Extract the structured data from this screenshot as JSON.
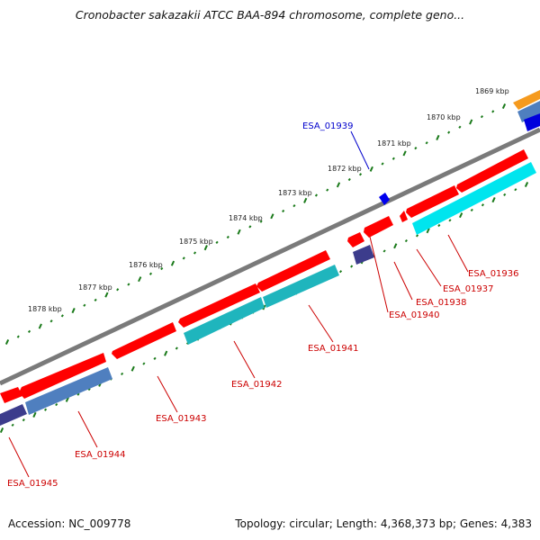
{
  "title": "Cronobacter sakazakii ATCC BAA-894 chromosome, complete geno...",
  "footer": {
    "accession": "Accession: NC_009778",
    "summary": "Topology: circular; Length: 4,368,373 bp; Genes: 4,383"
  },
  "colors": {
    "forward_cds": "#ff0000",
    "reverse_gene": "#00e5ee",
    "steel_blue_gene": "#4f7fbf",
    "navy_gene": "#3c3c8c",
    "highlight_label": "#0000cc",
    "gene_label": "#cc0000",
    "backbone": "#808080",
    "tick": "#1a7a1a"
  },
  "scale_ticks": [
    "1869 kbp",
    "1870 kbp",
    "1871 kbp",
    "1872 kbp",
    "1873 kbp",
    "1874 kbp",
    "1875 kbp",
    "1876 kbp",
    "1877 kbp",
    "1878 kbp"
  ],
  "gene_labels": [
    "ESA_01939",
    "ESA_01936",
    "ESA_01937",
    "ESA_01938",
    "ESA_01940",
    "ESA_01941",
    "ESA_01942",
    "ESA_01943",
    "ESA_01944",
    "ESA_01945"
  ]
}
